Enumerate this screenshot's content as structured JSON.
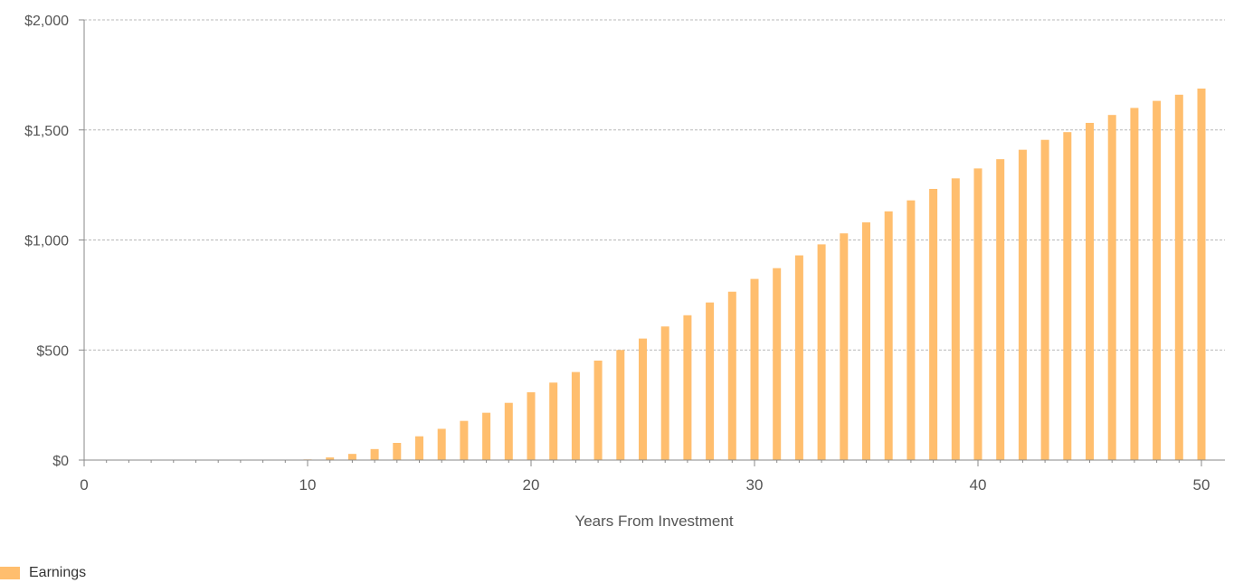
{
  "chart_data": {
    "type": "bar",
    "title": "",
    "xlabel": "Years From Investment",
    "ylabel": "",
    "xlim": [
      0,
      50
    ],
    "ylim": [
      0,
      2000
    ],
    "x_ticks": [
      0,
      10,
      20,
      30,
      40,
      50
    ],
    "x_tick_labels": [
      "0",
      "10",
      "20",
      "30",
      "40",
      "50"
    ],
    "y_ticks": [
      0,
      500,
      1000,
      1500,
      2000
    ],
    "y_tick_labels": [
      "$0",
      "$500",
      "$1,000",
      "$1,500",
      "$2,000"
    ],
    "grid": "horizontal dashed",
    "legend_position": "bottom-left",
    "series": [
      {
        "name": "Earnings",
        "color": "#ffbe6e",
        "x": [
          10,
          11,
          12,
          13,
          14,
          15,
          16,
          17,
          18,
          19,
          20,
          21,
          22,
          23,
          24,
          25,
          26,
          27,
          28,
          29,
          30,
          31,
          32,
          33,
          34,
          35,
          36,
          37,
          38,
          39,
          40,
          41,
          42,
          43,
          44,
          45,
          46,
          47,
          48,
          49,
          50
        ],
        "values": [
          3,
          12,
          28,
          50,
          78,
          108,
          142,
          178,
          215,
          260,
          308,
          352,
          400,
          452,
          500,
          552,
          607,
          658,
          716,
          765,
          823,
          872,
          930,
          980,
          1030,
          1080,
          1130,
          1180,
          1232,
          1280,
          1325,
          1367,
          1410,
          1455,
          1490,
          1532,
          1568,
          1600,
          1632,
          1660,
          1688
        ]
      }
    ]
  },
  "legend": {
    "items": [
      {
        "label": "Earnings",
        "color": "#ffbe6e"
      }
    ]
  }
}
